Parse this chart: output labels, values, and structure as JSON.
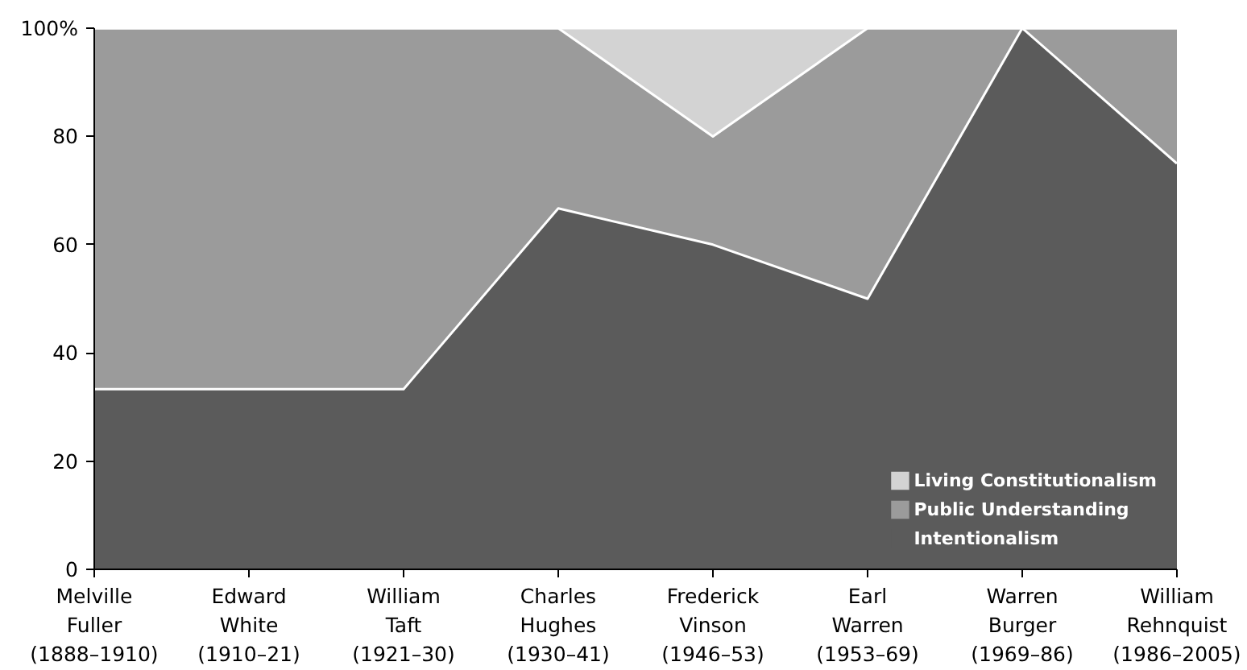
{
  "chart_data": {
    "type": "area",
    "stacked": true,
    "categories": [
      "Melville\nFuller\n(1888–1910)",
      "Edward\nWhite\n(1910–21)",
      "William\nTaft\n(1921–30)",
      "Charles\nHughes\n(1930–41)",
      "Frederick\nVinson\n(1946–53)",
      "Earl\nWarren\n(1953–69)",
      "Warren\nBurger\n(1969–86)",
      "William\nRehnquist\n(1986–2005)"
    ],
    "series": [
      {
        "name": "Intentionalism",
        "color": "#5b5b5b",
        "values": [
          33.3,
          33.3,
          33.3,
          66.7,
          60,
          50,
          100,
          75
        ]
      },
      {
        "name": "Public Understanding",
        "color": "#9b9b9b",
        "values": [
          66.7,
          66.7,
          66.7,
          33.3,
          20,
          50,
          0,
          25
        ]
      },
      {
        "name": "Living Constitutionalism",
        "color": "#d3d3d3",
        "values": [
          0,
          0,
          0,
          0,
          20,
          0,
          0,
          0
        ]
      }
    ],
    "ylim": [
      0,
      100
    ],
    "yticks": [
      0,
      20,
      40,
      60,
      80,
      {
        "value": 100,
        "label": "100%"
      }
    ],
    "legend": "bottom right"
  }
}
